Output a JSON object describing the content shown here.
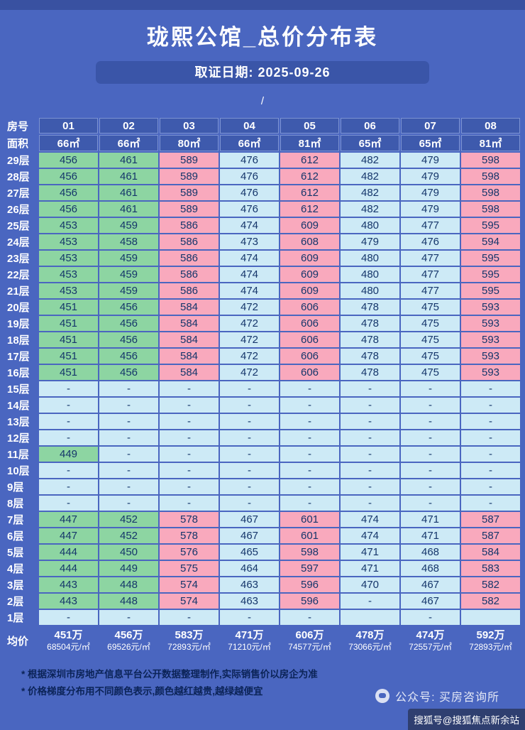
{
  "page": {
    "title": "珑熙公馆_总价分布表",
    "date_label": "取证日期: 2025-09-26",
    "divider": "/"
  },
  "chart_data": {
    "type": "table",
    "title": "珑熙公馆_总价分布表",
    "row_header_label": "房号",
    "area_label": "面积",
    "columns": [
      "01",
      "02",
      "03",
      "04",
      "05",
      "06",
      "07",
      "08"
    ],
    "areas": [
      "66㎡",
      "66㎡",
      "80㎡",
      "66㎡",
      "81㎡",
      "65㎡",
      "65㎡",
      "81㎡"
    ],
    "column_tones": [
      "green",
      "green",
      "pink",
      "blue",
      "pink",
      "blue",
      "blue",
      "pink"
    ],
    "value_unit": "万",
    "floors": [
      {
        "label": "29层",
        "values": [
          "456",
          "461",
          "589",
          "476",
          "612",
          "482",
          "479",
          "598"
        ]
      },
      {
        "label": "28层",
        "values": [
          "456",
          "461",
          "589",
          "476",
          "612",
          "482",
          "479",
          "598"
        ]
      },
      {
        "label": "27层",
        "values": [
          "456",
          "461",
          "589",
          "476",
          "612",
          "482",
          "479",
          "598"
        ]
      },
      {
        "label": "26层",
        "values": [
          "456",
          "461",
          "589",
          "476",
          "612",
          "482",
          "479",
          "598"
        ]
      },
      {
        "label": "25层",
        "values": [
          "453",
          "459",
          "586",
          "474",
          "609",
          "480",
          "477",
          "595"
        ]
      },
      {
        "label": "24层",
        "values": [
          "453",
          "458",
          "586",
          "473",
          "608",
          "479",
          "476",
          "594"
        ]
      },
      {
        "label": "23层",
        "values": [
          "453",
          "459",
          "586",
          "474",
          "609",
          "480",
          "477",
          "595"
        ]
      },
      {
        "label": "22层",
        "values": [
          "453",
          "459",
          "586",
          "474",
          "609",
          "480",
          "477",
          "595"
        ]
      },
      {
        "label": "21层",
        "values": [
          "453",
          "459",
          "586",
          "474",
          "609",
          "480",
          "477",
          "595"
        ]
      },
      {
        "label": "20层",
        "values": [
          "451",
          "456",
          "584",
          "472",
          "606",
          "478",
          "475",
          "593"
        ]
      },
      {
        "label": "19层",
        "values": [
          "451",
          "456",
          "584",
          "472",
          "606",
          "478",
          "475",
          "593"
        ]
      },
      {
        "label": "18层",
        "values": [
          "451",
          "456",
          "584",
          "472",
          "606",
          "478",
          "475",
          "593"
        ]
      },
      {
        "label": "17层",
        "values": [
          "451",
          "456",
          "584",
          "472",
          "606",
          "478",
          "475",
          "593"
        ]
      },
      {
        "label": "16层",
        "values": [
          "451",
          "456",
          "584",
          "472",
          "606",
          "478",
          "475",
          "593"
        ]
      },
      {
        "label": "15层",
        "values": [
          "-",
          "-",
          "-",
          "-",
          "-",
          "-",
          "-",
          "-"
        ]
      },
      {
        "label": "14层",
        "values": [
          "-",
          "-",
          "-",
          "-",
          "-",
          "-",
          "-",
          "-"
        ]
      },
      {
        "label": "13层",
        "values": [
          "-",
          "-",
          "-",
          "-",
          "-",
          "-",
          "-",
          "-"
        ]
      },
      {
        "label": "12层",
        "values": [
          "-",
          "-",
          "-",
          "-",
          "-",
          "-",
          "-",
          "-"
        ]
      },
      {
        "label": "11层",
        "values": [
          "449",
          "-",
          "-",
          "-",
          "-",
          "-",
          "-",
          "-"
        ]
      },
      {
        "label": "10层",
        "values": [
          "-",
          "-",
          "-",
          "-",
          "-",
          "-",
          "-",
          "-"
        ]
      },
      {
        "label": "9层",
        "values": [
          "-",
          "-",
          "-",
          "-",
          "-",
          "-",
          "-",
          "-"
        ]
      },
      {
        "label": "8层",
        "values": [
          "-",
          "-",
          "-",
          "-",
          "-",
          "-",
          "-",
          "-"
        ]
      },
      {
        "label": "7层",
        "values": [
          "447",
          "452",
          "578",
          "467",
          "601",
          "474",
          "471",
          "587"
        ]
      },
      {
        "label": "6层",
        "values": [
          "447",
          "452",
          "578",
          "467",
          "601",
          "474",
          "471",
          "587"
        ]
      },
      {
        "label": "5层",
        "values": [
          "444",
          "450",
          "576",
          "465",
          "598",
          "471",
          "468",
          "584"
        ]
      },
      {
        "label": "4层",
        "values": [
          "444",
          "449",
          "575",
          "464",
          "597",
          "471",
          "468",
          "583"
        ]
      },
      {
        "label": "3层",
        "values": [
          "443",
          "448",
          "574",
          "463",
          "596",
          "470",
          "467",
          "582"
        ]
      },
      {
        "label": "2层",
        "values": [
          "443",
          "448",
          "574",
          "463",
          "596",
          "-",
          "467",
          "582"
        ]
      },
      {
        "label": "1层",
        "values": [
          "-",
          "-",
          "-",
          "-",
          "-",
          "",
          "-",
          ""
        ]
      }
    ],
    "average_label": "均价",
    "averages": [
      {
        "total": "451万",
        "per_sqm": "68504元/㎡"
      },
      {
        "total": "456万",
        "per_sqm": "69526元/㎡"
      },
      {
        "total": "583万",
        "per_sqm": "72893元/㎡"
      },
      {
        "total": "471万",
        "per_sqm": "71210元/㎡"
      },
      {
        "total": "606万",
        "per_sqm": "74577元/㎡"
      },
      {
        "total": "478万",
        "per_sqm": "73066元/㎡"
      },
      {
        "total": "474万",
        "per_sqm": "72557元/㎡"
      },
      {
        "total": "592万",
        "per_sqm": "72893元/㎡"
      }
    ]
  },
  "footnotes": [
    "* 根据深圳市房地产信息平台公开数据整理制作,实际销售价以房企为准",
    "* 价格梯度分布用不同颜色表示,颜色越红越贵,越绿越便宜"
  ],
  "watermark": {
    "wechat_label": "公众号: 买房咨询所",
    "sohu_label": "搜狐号@搜狐焦点新余站"
  },
  "colors": {
    "background": "#4a66c0",
    "band": "#3a55a8",
    "header_cell": "#3e5aad",
    "green": "#8dd5a2",
    "pink": "#f9a9bd",
    "blue": "#cdeaf6",
    "cell_text": "#15366b"
  }
}
